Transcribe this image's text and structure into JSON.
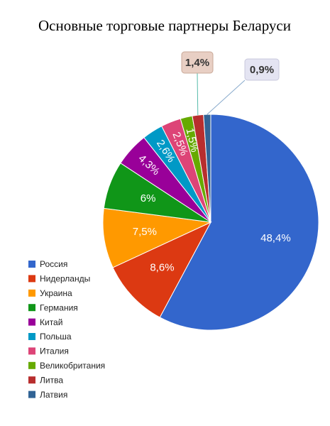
{
  "chart_data": {
    "type": "pie",
    "title": "Основные торговые партнеры Беларуси",
    "categories": [
      "Россия",
      "Нидерланды",
      "Украина",
      "Германия",
      "Китай",
      "Польша",
      "Италия",
      "Великобритания",
      "Литва",
      "Латвия"
    ],
    "values": [
      48.4,
      8.6,
      7.5,
      6,
      4.3,
      2.6,
      2.5,
      1.5,
      1.4,
      0.9
    ],
    "value_labels": [
      "48,4%",
      "8,6%",
      "7,5%",
      "6%",
      "4,3%",
      "2,6%",
      "2,5%",
      "1,5%",
      "1,4%",
      "0,9%"
    ],
    "colors": [
      "#3366cc",
      "#dc3912",
      "#ff9900",
      "#109618",
      "#990099",
      "#0099c6",
      "#dd4477",
      "#66aa00",
      "#b82e2e",
      "#316395"
    ],
    "legend": "bottom-left"
  }
}
